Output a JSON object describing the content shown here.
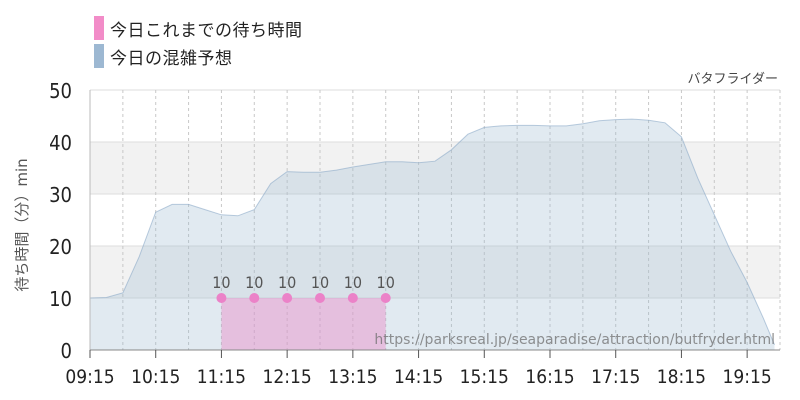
{
  "legend": [
    {
      "label": "今日これまでの待ち時間",
      "color": "#f28cc8"
    },
    {
      "label": "今日の混雑予想",
      "color": "#9db8d2"
    }
  ],
  "attraction_name": "バタフライダー",
  "watermark": "https://parksreal.jp/seaparadise/attraction/butfryder.html",
  "chart_data": {
    "type": "area",
    "ylabel": "待ち時間（分）min",
    "ylim": [
      0,
      50
    ],
    "yticks": [
      0,
      10,
      20,
      30,
      40,
      50
    ],
    "xticks": [
      "09:15",
      "10:15",
      "11:15",
      "12:15",
      "13:15",
      "14:15",
      "15:15",
      "16:15",
      "17:15",
      "18:15",
      "19:15"
    ],
    "grid": true,
    "series": [
      {
        "name": "今日の混雑予想",
        "color": "#9db8d2",
        "x": [
          "09:15",
          "09:30",
          "09:45",
          "10:00",
          "10:15",
          "10:30",
          "10:45",
          "11:00",
          "11:15",
          "11:30",
          "11:45",
          "12:00",
          "12:15",
          "12:30",
          "12:45",
          "13:00",
          "13:15",
          "13:30",
          "13:45",
          "14:00",
          "14:15",
          "14:30",
          "14:45",
          "15:00",
          "15:15",
          "15:30",
          "15:45",
          "16:00",
          "16:15",
          "16:30",
          "16:45",
          "17:00",
          "17:15",
          "17:30",
          "17:45",
          "18:00",
          "18:15",
          "18:30",
          "18:45",
          "19:00",
          "19:15",
          "19:30",
          "19:40"
        ],
        "y": [
          10,
          10.1,
          11,
          18,
          26.5,
          28,
          28,
          27,
          26,
          25.8,
          27,
          32,
          34.3,
          34.2,
          34.2,
          34.6,
          35.2,
          35.7,
          36.2,
          36.2,
          36,
          36.3,
          38.5,
          41.5,
          42.8,
          43.1,
          43.2,
          43.2,
          43.1,
          43.1,
          43.5,
          44.1,
          44.3,
          44.4,
          44.2,
          43.7,
          41,
          33,
          26,
          19,
          13,
          6,
          1
        ]
      },
      {
        "name": "今日これまでの待ち時間",
        "color": "#f28cc8",
        "x": [
          "11:15",
          "11:45",
          "12:15",
          "12:45",
          "13:15",
          "13:45"
        ],
        "y": [
          10,
          10,
          10,
          10,
          10,
          10
        ],
        "labels": [
          "10",
          "10",
          "10",
          "10",
          "10",
          "10"
        ]
      }
    ]
  }
}
